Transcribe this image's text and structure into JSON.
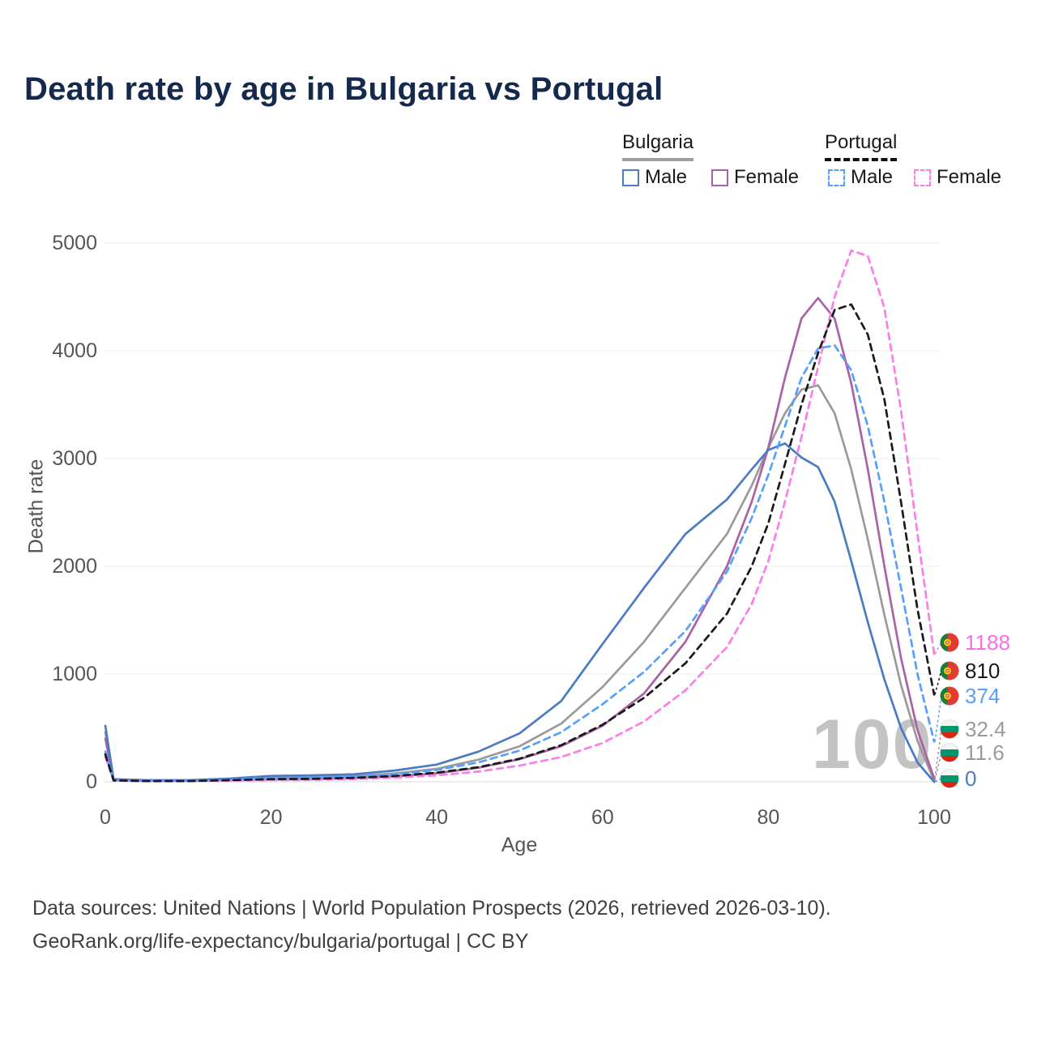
{
  "title": "Death rate by age in Bulgaria vs Portugal",
  "legend": {
    "groups": [
      {
        "label": "Bulgaria",
        "line_style": "solid",
        "line_color": "#9e9e9e",
        "items": [
          {
            "label": "Male",
            "color": "#4a7bc4",
            "dashed": false
          },
          {
            "label": "Female",
            "color": "#a963a5",
            "dashed": false
          }
        ]
      },
      {
        "label": "Portugal",
        "line_style": "dashed",
        "line_color": "#111111",
        "items": [
          {
            "label": "Male",
            "color": "#55a0ff",
            "dashed": true
          },
          {
            "label": "Female",
            "color": "#fb7ee8",
            "dashed": true
          }
        ]
      }
    ]
  },
  "watermark": "100",
  "footer": {
    "line1": "Data sources: United Nations | World Population Prospects (2026, retrieved 2026-03-10).",
    "line2": "GeoRank.org/life-expectancy/bulgaria/portugal | CC BY"
  },
  "chart_data": {
    "type": "line",
    "title": "Death rate by age in Bulgaria vs Portugal",
    "xlabel": "Age",
    "ylabel": "Death rate",
    "xlim": [
      0,
      100
    ],
    "ylim": [
      0,
      5000
    ],
    "x_ticks": [
      0,
      20,
      40,
      60,
      80,
      100
    ],
    "y_ticks": [
      0,
      1000,
      2000,
      3000,
      4000,
      5000
    ],
    "grid": true,
    "legend_position": "top-right",
    "x": [
      0,
      1,
      5,
      10,
      15,
      20,
      25,
      30,
      35,
      40,
      45,
      50,
      55,
      60,
      65,
      70,
      75,
      78,
      80,
      82,
      84,
      86,
      88,
      90,
      92,
      94,
      96,
      98,
      100
    ],
    "series": [
      {
        "name": "Bulgaria",
        "country": "Bulgaria",
        "sex": "Both",
        "color": "#9a9a9a",
        "dashed": false,
        "values": [
          460,
          22,
          12,
          12,
          22,
          38,
          42,
          52,
          78,
          120,
          205,
          330,
          540,
          880,
          1300,
          1800,
          2300,
          2750,
          3100,
          3420,
          3640,
          3680,
          3420,
          2900,
          2250,
          1550,
          900,
          380,
          11.6
        ]
      },
      {
        "name": "Bulgaria Female",
        "country": "Bulgaria",
        "sex": "Female",
        "color": "#a963a5",
        "dashed": false,
        "values": [
          400,
          20,
          10,
          10,
          15,
          20,
          25,
          35,
          50,
          80,
          130,
          210,
          330,
          520,
          820,
          1300,
          2000,
          2600,
          3100,
          3750,
          4300,
          4490,
          4300,
          3700,
          2900,
          2000,
          1150,
          480,
          32.4
        ]
      },
      {
        "name": "Bulgaria Male",
        "country": "Bulgaria",
        "sex": "Male",
        "color": "#4a7bc4",
        "dashed": false,
        "values": [
          520,
          25,
          15,
          15,
          30,
          55,
          60,
          70,
          105,
          160,
          280,
          450,
          750,
          1280,
          1800,
          2300,
          2620,
          2900,
          3080,
          3140,
          3010,
          2920,
          2600,
          2050,
          1480,
          950,
          500,
          180,
          0
        ]
      },
      {
        "name": "Portugal Female",
        "country": "Portugal",
        "sex": "Female",
        "color": "#fb7ee8",
        "dashed": true,
        "values": [
          230,
          12,
          6,
          6,
          10,
          15,
          18,
          25,
          38,
          60,
          95,
          150,
          230,
          360,
          560,
          850,
          1250,
          1650,
          2050,
          2600,
          3200,
          3850,
          4500,
          4930,
          4880,
          4400,
          3450,
          2300,
          1188
        ]
      },
      {
        "name": "Portugal Male",
        "country": "Portugal",
        "sex": "Male",
        "color": "#55a0ff",
        "dashed": true,
        "values": [
          280,
          15,
          8,
          8,
          20,
          35,
          40,
          50,
          70,
          110,
          180,
          290,
          460,
          720,
          1020,
          1400,
          1950,
          2450,
          2850,
          3300,
          3750,
          4020,
          4050,
          3820,
          3300,
          2600,
          1800,
          1000,
          374
        ]
      },
      {
        "name": "Portugal",
        "country": "Portugal",
        "sex": "Both",
        "color": "#1a1a1a",
        "dashed": true,
        "values": [
          255,
          13,
          7,
          7,
          15,
          25,
          28,
          37,
          54,
          85,
          135,
          215,
          340,
          530,
          780,
          1100,
          1560,
          2000,
          2400,
          2950,
          3500,
          3980,
          4380,
          4430,
          4150,
          3550,
          2600,
          1600,
          810
        ]
      }
    ],
    "end_labels": [
      {
        "label": "1188",
        "value": 1188,
        "color": "#f96fe0",
        "flag": "pt",
        "series": "Portugal Female"
      },
      {
        "label": "810",
        "value": 810,
        "color": "#1a1a1a",
        "flag": "pt",
        "series": "Portugal"
      },
      {
        "label": "374",
        "value": 374,
        "color": "#55a0ff",
        "flag": "pt",
        "series": "Portugal Male"
      },
      {
        "label": "32.4",
        "value": 32.4,
        "color": "#9a9a9a",
        "flag": "bg",
        "series": "Bulgaria Female"
      },
      {
        "label": "11.6",
        "value": 11.6,
        "color": "#9a9a9a",
        "flag": "bg",
        "series": "Bulgaria"
      },
      {
        "label": "0",
        "value": 0,
        "color": "#4a7bc4",
        "flag": "bg",
        "series": "Bulgaria Male"
      }
    ]
  }
}
